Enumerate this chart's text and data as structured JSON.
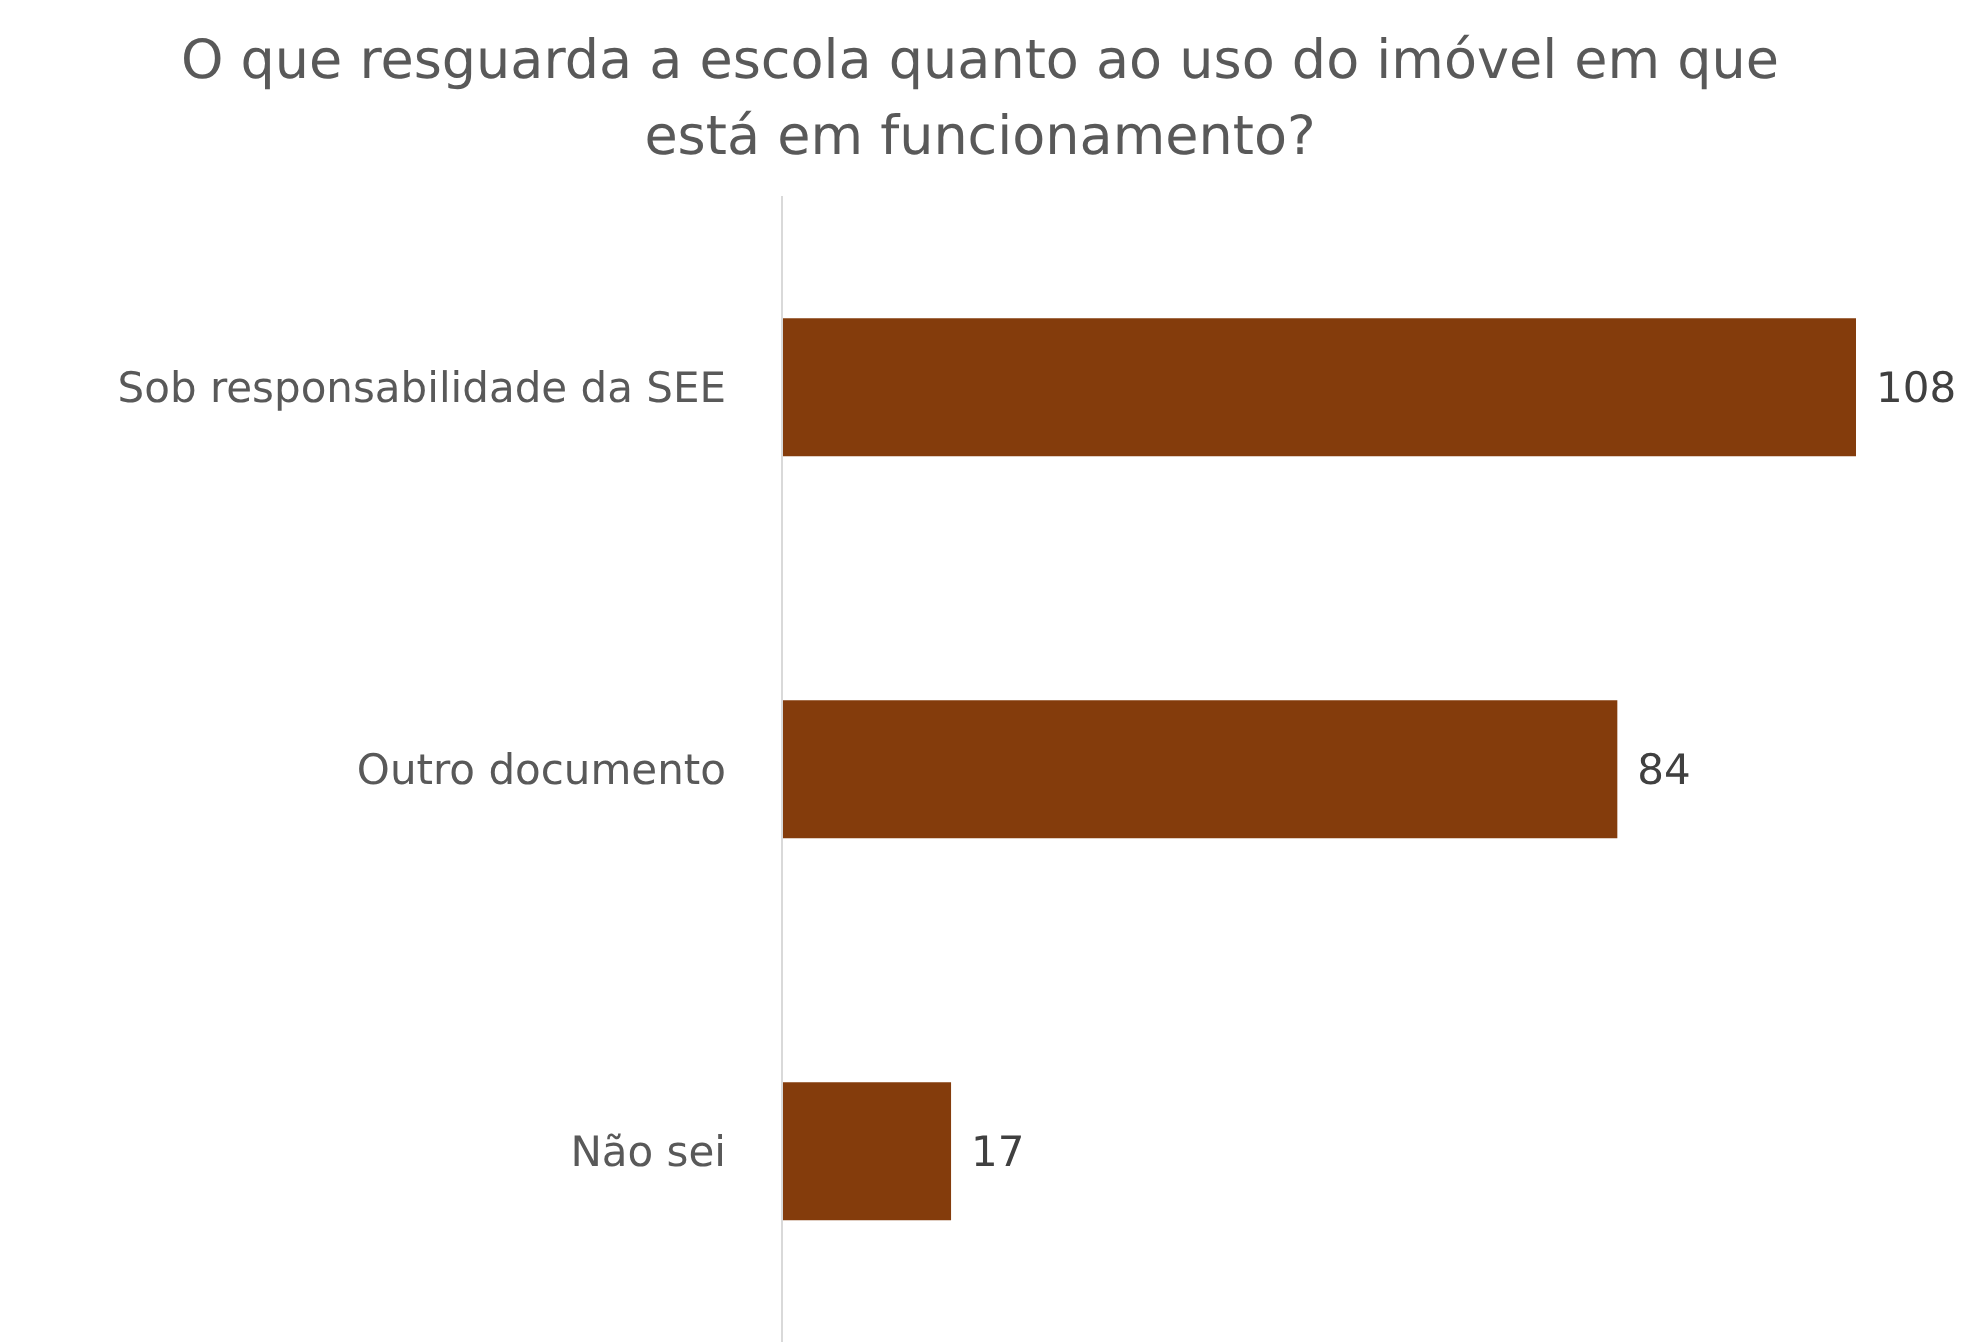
{
  "chart_data": {
    "type": "bar",
    "orientation": "horizontal",
    "title": "O que resguarda a escola quanto ao uso do imóvel em que está em funcionamento?",
    "categories": [
      "Sob responsabilidade da SEE",
      "Outro documento",
      "Não sei"
    ],
    "values": [
      108,
      84,
      17
    ],
    "color": "#843c0c",
    "data_labels": true,
    "grid": false,
    "legend": false
  }
}
